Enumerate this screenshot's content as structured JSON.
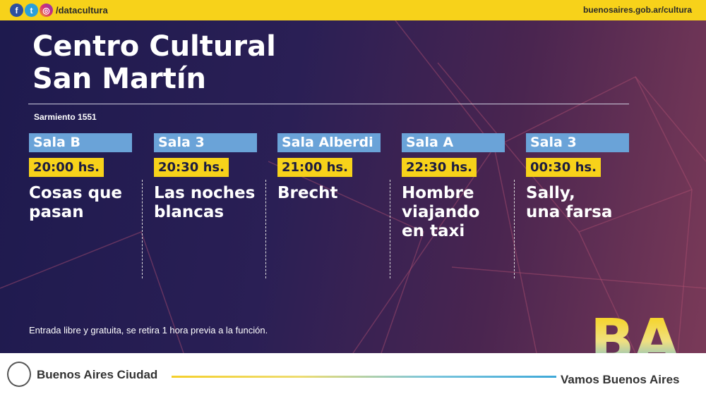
{
  "header": {
    "handle": "/datacultura",
    "site": "buenosaires.gob.ar/cultura",
    "icons": [
      "facebook-icon",
      "twitter-icon",
      "instagram-icon"
    ]
  },
  "venue": {
    "line1": "Centro Cultural",
    "line2": "San Martín",
    "address": "Sarmiento 1551"
  },
  "shows": [
    {
      "sala": "Sala B",
      "time": "20:00 hs.",
      "title": "Cosas que\npasan"
    },
    {
      "sala": "Sala 3",
      "time": "20:30 hs.",
      "title": "Las noches\nblancas"
    },
    {
      "sala": "Sala Alberdi",
      "time": "21:00 hs.",
      "title": "Brecht"
    },
    {
      "sala": "Sala A",
      "time": "22:30 hs.",
      "title": "Hombre\nviajando\nen taxi"
    },
    {
      "sala": "Sala 3",
      "time": "00:30 hs.",
      "title": "Sally,\nuna farsa"
    }
  ],
  "note": "Entrada libre y gratuita, se retira 1 hora previa a la función.",
  "footer": {
    "city": "Buenos Aires Ciudad",
    "slogan": "Vamos Buenos Aires",
    "logo": "BA"
  },
  "colors": {
    "yellow": "#f7d21a",
    "sala_blue": "#6aa3d8",
    "bg_dark": "#1e1a4e"
  }
}
